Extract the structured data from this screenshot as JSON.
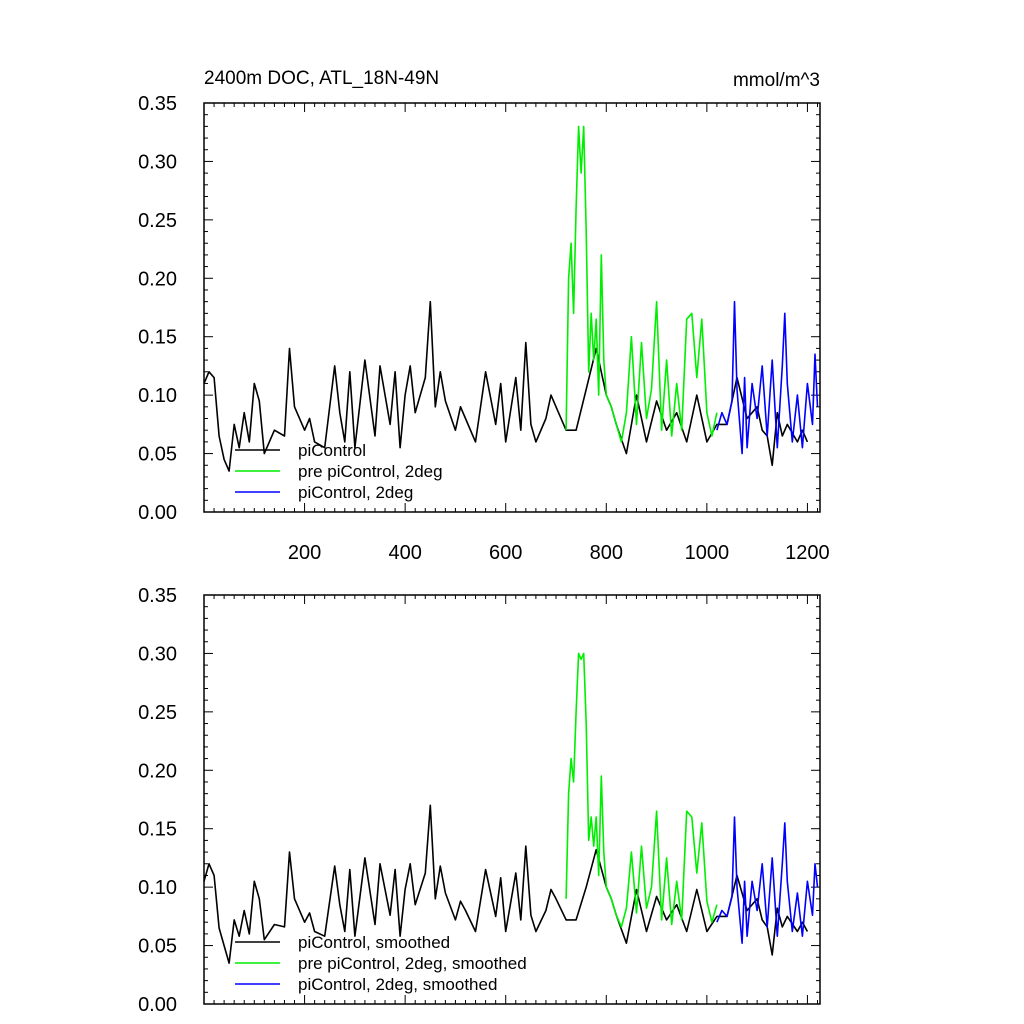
{
  "chart_data": [
    {
      "type": "line",
      "title": "2400m DOC, ATL_18N-49N",
      "units": "mmol/m^3",
      "xlim": [
        0,
        1225
      ],
      "ylim": [
        0,
        0.35
      ],
      "yticks": [
        "0.00",
        "0.05",
        "0.10",
        "0.15",
        "0.20",
        "0.25",
        "0.30",
        "0.35"
      ],
      "xticks": [
        "200",
        "400",
        "600",
        "800",
        "1000",
        "1200"
      ],
      "legend_position": "bottom-left",
      "series": [
        {
          "name": "piControl",
          "color": "#000000",
          "x": [
            0,
            10,
            20,
            30,
            40,
            50,
            60,
            70,
            80,
            90,
            100,
            110,
            120,
            140,
            160,
            170,
            180,
            200,
            210,
            220,
            240,
            260,
            270,
            280,
            290,
            300,
            320,
            340,
            350,
            370,
            380,
            390,
            400,
            410,
            420,
            440,
            450,
            460,
            470,
            480,
            500,
            510,
            520,
            540,
            560,
            580,
            590,
            600,
            620,
            630,
            640,
            650,
            660,
            680,
            690,
            700,
            720,
            740,
            760,
            780,
            800,
            810,
            820,
            840,
            860,
            880,
            900,
            920,
            940,
            960,
            980,
            1000,
            1020,
            1040,
            1060,
            1080,
            1100,
            1110,
            1120,
            1130,
            1140,
            1150,
            1160,
            1180,
            1190,
            1200
          ],
          "y": [
            0.11,
            0.12,
            0.115,
            0.065,
            0.045,
            0.035,
            0.075,
            0.055,
            0.085,
            0.06,
            0.11,
            0.095,
            0.05,
            0.07,
            0.065,
            0.14,
            0.09,
            0.07,
            0.08,
            0.06,
            0.055,
            0.125,
            0.085,
            0.06,
            0.12,
            0.055,
            0.13,
            0.065,
            0.125,
            0.075,
            0.12,
            0.055,
            0.1,
            0.125,
            0.085,
            0.115,
            0.18,
            0.09,
            0.12,
            0.095,
            0.07,
            0.09,
            0.08,
            0.06,
            0.12,
            0.075,
            0.11,
            0.06,
            0.115,
            0.07,
            0.145,
            0.075,
            0.06,
            0.08,
            0.1,
            0.09,
            0.07,
            0.07,
            0.105,
            0.14,
            0.1,
            0.09,
            0.075,
            0.05,
            0.1,
            0.06,
            0.095,
            0.07,
            0.085,
            0.06,
            0.1,
            0.06,
            0.075,
            0.075,
            0.115,
            0.08,
            0.09,
            0.07,
            0.065,
            0.04,
            0.085,
            0.065,
            0.075,
            0.06,
            0.07,
            0.06
          ]
        },
        {
          "name": "pre piControl, 2deg",
          "color": "#00ee00",
          "x": [
            720,
            725,
            730,
            735,
            740,
            745,
            750,
            755,
            760,
            765,
            770,
            775,
            780,
            785,
            790,
            795,
            800,
            810,
            820,
            830,
            840,
            850,
            860,
            870,
            880,
            890,
            900,
            910,
            920,
            930,
            940,
            950,
            960,
            970,
            980,
            990,
            1000,
            1010,
            1020
          ],
          "y": [
            0.07,
            0.2,
            0.23,
            0.17,
            0.26,
            0.33,
            0.29,
            0.33,
            0.24,
            0.12,
            0.17,
            0.13,
            0.165,
            0.1,
            0.22,
            0.13,
            0.1,
            0.09,
            0.075,
            0.06,
            0.085,
            0.15,
            0.075,
            0.145,
            0.08,
            0.105,
            0.18,
            0.07,
            0.13,
            0.065,
            0.11,
            0.07,
            0.165,
            0.17,
            0.115,
            0.165,
            0.085,
            0.065,
            0.085
          ]
        },
        {
          "name": "piControl, 2deg",
          "color": "#0000ff",
          "x": [
            1020,
            1030,
            1040,
            1050,
            1055,
            1060,
            1070,
            1075,
            1080,
            1090,
            1100,
            1110,
            1120,
            1130,
            1140,
            1150,
            1155,
            1160,
            1170,
            1180,
            1190,
            1200,
            1210,
            1215,
            1220
          ],
          "y": [
            0.07,
            0.085,
            0.075,
            0.095,
            0.18,
            0.105,
            0.05,
            0.115,
            0.055,
            0.11,
            0.08,
            0.125,
            0.065,
            0.13,
            0.055,
            0.125,
            0.17,
            0.11,
            0.06,
            0.1,
            0.055,
            0.11,
            0.075,
            0.135,
            0.09
          ]
        }
      ]
    },
    {
      "type": "line",
      "xlim": [
        0,
        1225
      ],
      "ylim": [
        0,
        0.35
      ],
      "yticks": [
        "0.00",
        "0.05",
        "0.10",
        "0.15",
        "0.20",
        "0.25",
        "0.30",
        "0.35"
      ],
      "legend_position": "bottom-left",
      "series": [
        {
          "name": "piControl, smoothed",
          "color": "#000000",
          "x": [
            0,
            10,
            20,
            30,
            40,
            50,
            60,
            70,
            80,
            90,
            100,
            110,
            120,
            140,
            160,
            170,
            180,
            200,
            210,
            220,
            240,
            260,
            270,
            280,
            290,
            300,
            320,
            340,
            350,
            370,
            380,
            390,
            400,
            410,
            420,
            440,
            450,
            460,
            470,
            480,
            500,
            510,
            520,
            540,
            560,
            580,
            590,
            600,
            620,
            630,
            640,
            650,
            660,
            680,
            690,
            700,
            720,
            740,
            760,
            780,
            800,
            810,
            820,
            840,
            860,
            880,
            900,
            920,
            940,
            960,
            980,
            1000,
            1020,
            1040,
            1060,
            1080,
            1100,
            1110,
            1120,
            1130,
            1140,
            1150,
            1160,
            1180,
            1190,
            1200
          ],
          "y": [
            0.105,
            0.12,
            0.11,
            0.065,
            0.05,
            0.035,
            0.072,
            0.058,
            0.08,
            0.06,
            0.105,
            0.09,
            0.055,
            0.068,
            0.066,
            0.13,
            0.09,
            0.07,
            0.078,
            0.062,
            0.058,
            0.118,
            0.085,
            0.062,
            0.115,
            0.058,
            0.125,
            0.068,
            0.12,
            0.076,
            0.115,
            0.058,
            0.098,
            0.12,
            0.085,
            0.112,
            0.17,
            0.09,
            0.118,
            0.095,
            0.072,
            0.088,
            0.08,
            0.062,
            0.115,
            0.075,
            0.108,
            0.062,
            0.112,
            0.072,
            0.135,
            0.076,
            0.062,
            0.08,
            0.098,
            0.09,
            0.072,
            0.072,
            0.1,
            0.132,
            0.1,
            0.09,
            0.076,
            0.052,
            0.098,
            0.062,
            0.092,
            0.072,
            0.085,
            0.062,
            0.098,
            0.062,
            0.075,
            0.075,
            0.11,
            0.08,
            0.09,
            0.072,
            0.066,
            0.042,
            0.082,
            0.066,
            0.075,
            0.062,
            0.07,
            0.062
          ]
        },
        {
          "name": "pre piControl, 2deg, smoothed",
          "color": "#00ee00",
          "x": [
            720,
            725,
            730,
            735,
            740,
            745,
            750,
            755,
            760,
            765,
            770,
            775,
            780,
            785,
            790,
            795,
            800,
            810,
            820,
            830,
            840,
            850,
            860,
            870,
            880,
            890,
            900,
            910,
            920,
            930,
            940,
            950,
            960,
            970,
            980,
            990,
            1000,
            1010,
            1020
          ],
          "y": [
            0.09,
            0.18,
            0.21,
            0.19,
            0.25,
            0.3,
            0.295,
            0.3,
            0.24,
            0.14,
            0.16,
            0.135,
            0.16,
            0.11,
            0.195,
            0.13,
            0.1,
            0.09,
            0.076,
            0.066,
            0.082,
            0.13,
            0.078,
            0.135,
            0.082,
            0.1,
            0.165,
            0.072,
            0.125,
            0.068,
            0.105,
            0.072,
            0.165,
            0.16,
            0.112,
            0.155,
            0.088,
            0.07,
            0.085
          ]
        },
        {
          "name": "piControl, 2deg, smoothed",
          "color": "#0000ff",
          "x": [
            1020,
            1030,
            1040,
            1050,
            1055,
            1060,
            1070,
            1075,
            1080,
            1090,
            1100,
            1110,
            1120,
            1130,
            1140,
            1150,
            1155,
            1160,
            1170,
            1180,
            1190,
            1200,
            1210,
            1215,
            1220
          ],
          "y": [
            0.07,
            0.08,
            0.075,
            0.092,
            0.16,
            0.1,
            0.052,
            0.105,
            0.058,
            0.105,
            0.08,
            0.12,
            0.066,
            0.125,
            0.058,
            0.12,
            0.155,
            0.105,
            0.062,
            0.095,
            0.058,
            0.105,
            0.076,
            0.12,
            0.1
          ]
        }
      ]
    }
  ]
}
